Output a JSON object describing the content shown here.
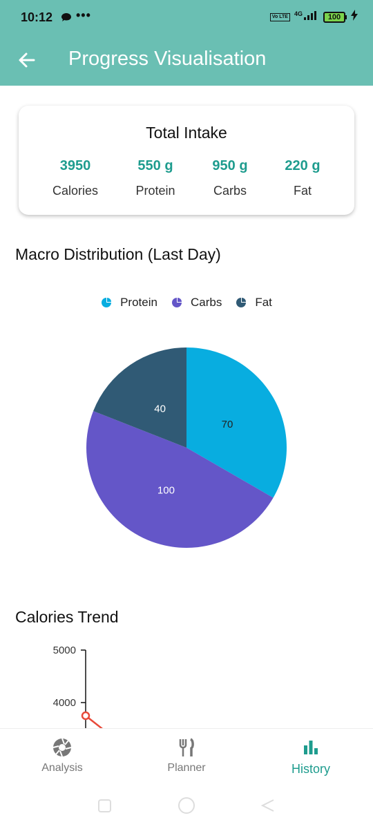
{
  "status_bar": {
    "time": "10:12",
    "dots": "•••",
    "volte": "Vo LTE",
    "network": "4G",
    "battery": "100"
  },
  "app_bar": {
    "title": "Progress Visualisation",
    "back_icon": "arrow-left-icon"
  },
  "total_intake": {
    "title": "Total Intake",
    "items": [
      {
        "value": "3950",
        "label": "Calories"
      },
      {
        "value": "550 g",
        "label": "Protein"
      },
      {
        "value": "950 g",
        "label": "Carbs"
      },
      {
        "value": "220 g",
        "label": "Fat"
      }
    ]
  },
  "macro_section": {
    "title": "Macro Distribution (Last Day)",
    "legend": [
      {
        "label": "Protein",
        "color": "#08ADE0"
      },
      {
        "label": "Carbs",
        "color": "#6456C8"
      },
      {
        "label": "Fat",
        "color": "#305A75"
      }
    ]
  },
  "trend_section": {
    "title": "Calories Trend"
  },
  "chart_data": [
    {
      "type": "pie",
      "categories": [
        "Protein",
        "Carbs",
        "Fat"
      ],
      "values": [
        70,
        100,
        40
      ],
      "colors": [
        "#08ADE0",
        "#6456C8",
        "#305A75"
      ],
      "data_labels": [
        "70",
        "100",
        "40"
      ],
      "start": "top, clockwise"
    },
    {
      "type": "line",
      "y_ticks": [
        "5000",
        "4000"
      ],
      "visible_points": [
        {
          "y": 3750
        }
      ],
      "line_color": "#E84A3A"
    }
  ],
  "bottom_nav": {
    "items": [
      {
        "label": "Analysis",
        "icon": "aperture-icon",
        "active": false
      },
      {
        "label": "Planner",
        "icon": "fork-knife-icon",
        "active": false
      },
      {
        "label": "History",
        "icon": "bar-chart-icon",
        "active": true
      }
    ],
    "accent": "#1E9C8E"
  }
}
